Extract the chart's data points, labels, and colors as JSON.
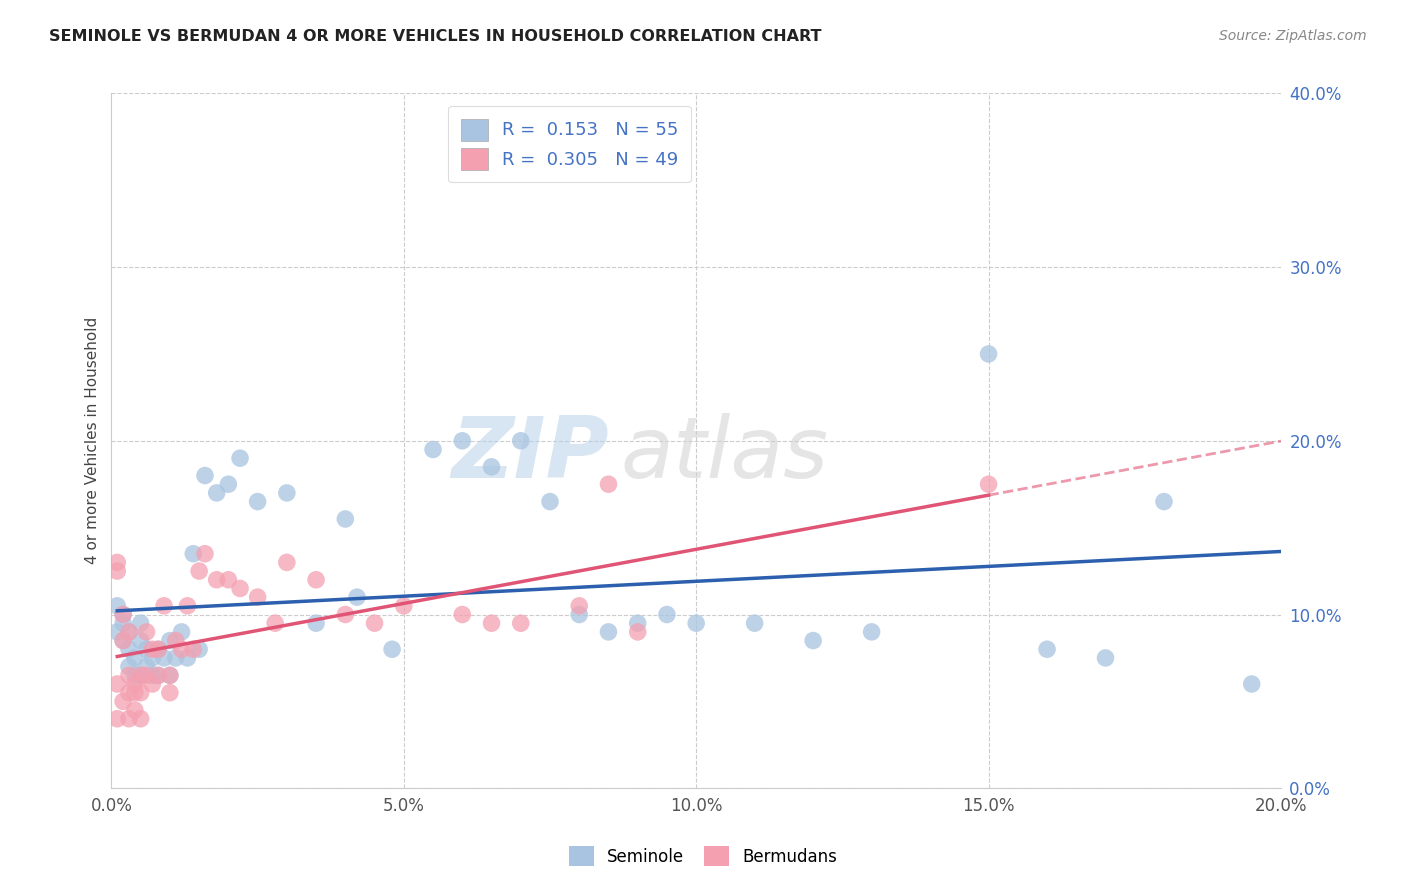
{
  "title": "SEMINOLE VS BERMUDAN 4 OR MORE VEHICLES IN HOUSEHOLD CORRELATION CHART",
  "source": "Source: ZipAtlas.com",
  "ylabel": "4 or more Vehicles in Household",
  "watermark_zip": "ZIP",
  "watermark_atlas": "atlas",
  "seminole_R": "0.153",
  "seminole_N": "55",
  "bermudans_R": "0.305",
  "bermudans_N": "49",
  "seminole_color": "#a8c4e0",
  "bermudans_color": "#f4a0b0",
  "seminole_line_color": "#2c5fad",
  "bermudans_line_color": "#e05575",
  "bermudans_dash_color": "#e8a0b0",
  "xlim": [
    0.0,
    0.2
  ],
  "ylim": [
    0.0,
    0.4
  ],
  "xticks": [
    0.0,
    0.05,
    0.1,
    0.15,
    0.2
  ],
  "yticks": [
    0.0,
    0.1,
    0.2,
    0.3,
    0.4
  ],
  "text_blue": "#4472c4",
  "background_color": "#ffffff",
  "grid_color": "#cccccc",
  "seminole_x": [
    0.001,
    0.001,
    0.002,
    0.002,
    0.002,
    0.003,
    0.003,
    0.003,
    0.004,
    0.004,
    0.005,
    0.005,
    0.005,
    0.006,
    0.006,
    0.007,
    0.007,
    0.008,
    0.008,
    0.009,
    0.01,
    0.01,
    0.011,
    0.012,
    0.013,
    0.014,
    0.015,
    0.016,
    0.018,
    0.02,
    0.022,
    0.025,
    0.03,
    0.035,
    0.04,
    0.042,
    0.048,
    0.055,
    0.06,
    0.065,
    0.07,
    0.075,
    0.08,
    0.085,
    0.09,
    0.095,
    0.1,
    0.11,
    0.12,
    0.13,
    0.15,
    0.16,
    0.17,
    0.18,
    0.195
  ],
  "seminole_y": [
    0.105,
    0.09,
    0.1,
    0.085,
    0.095,
    0.09,
    0.08,
    0.07,
    0.075,
    0.065,
    0.095,
    0.085,
    0.065,
    0.08,
    0.07,
    0.075,
    0.065,
    0.08,
    0.065,
    0.075,
    0.085,
    0.065,
    0.075,
    0.09,
    0.075,
    0.135,
    0.08,
    0.18,
    0.17,
    0.175,
    0.19,
    0.165,
    0.17,
    0.095,
    0.155,
    0.11,
    0.08,
    0.195,
    0.2,
    0.185,
    0.2,
    0.165,
    0.1,
    0.09,
    0.095,
    0.1,
    0.095,
    0.095,
    0.085,
    0.09,
    0.25,
    0.08,
    0.075,
    0.165,
    0.06
  ],
  "bermudans_x": [
    0.001,
    0.001,
    0.001,
    0.001,
    0.002,
    0.002,
    0.002,
    0.003,
    0.003,
    0.003,
    0.003,
    0.004,
    0.004,
    0.004,
    0.005,
    0.005,
    0.005,
    0.006,
    0.006,
    0.007,
    0.007,
    0.008,
    0.008,
    0.009,
    0.01,
    0.01,
    0.011,
    0.012,
    0.013,
    0.014,
    0.015,
    0.016,
    0.018,
    0.02,
    0.022,
    0.025,
    0.028,
    0.03,
    0.035,
    0.04,
    0.045,
    0.05,
    0.06,
    0.065,
    0.07,
    0.08,
    0.085,
    0.09,
    0.15
  ],
  "bermudans_y": [
    0.13,
    0.125,
    0.06,
    0.04,
    0.1,
    0.085,
    0.05,
    0.09,
    0.065,
    0.055,
    0.04,
    0.06,
    0.055,
    0.045,
    0.065,
    0.055,
    0.04,
    0.09,
    0.065,
    0.06,
    0.08,
    0.08,
    0.065,
    0.105,
    0.065,
    0.055,
    0.085,
    0.08,
    0.105,
    0.08,
    0.125,
    0.135,
    0.12,
    0.12,
    0.115,
    0.11,
    0.095,
    0.13,
    0.12,
    0.1,
    0.095,
    0.105,
    0.1,
    0.095,
    0.095,
    0.105,
    0.175,
    0.09,
    0.175
  ]
}
